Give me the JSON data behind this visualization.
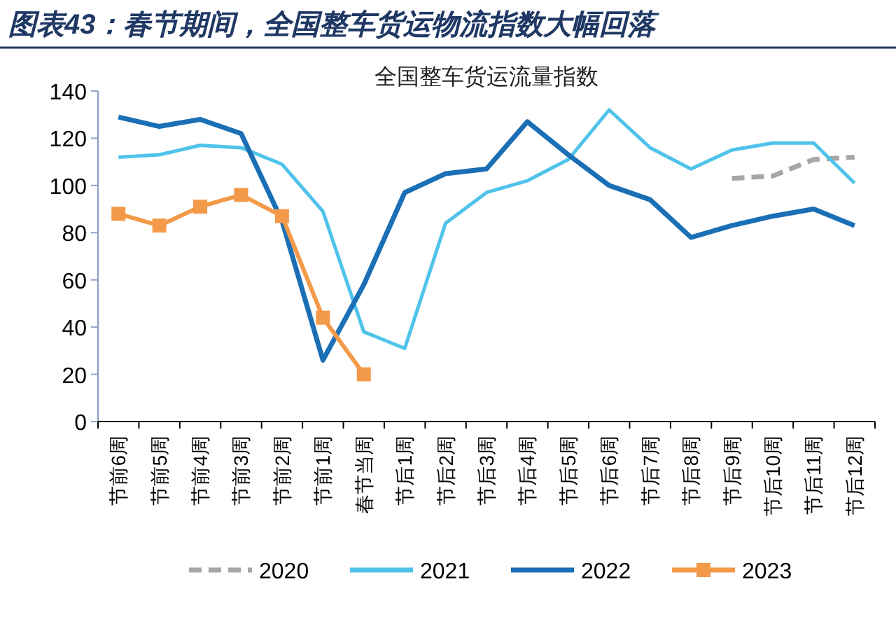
{
  "chart_data": {
    "type": "line",
    "title": "图表43：春节期间，全国整车货运物流指数大幅回落",
    "subtitle": "全国整车货运流量指数",
    "categories": [
      "节前6周",
      "节前5周",
      "节前4周",
      "节前3周",
      "节前2周",
      "节前1周",
      "春节当周",
      "节后1周",
      "节后2周",
      "节后3周",
      "节后4周",
      "节后5周",
      "节后6周",
      "节后7周",
      "节后8周",
      "节后9周",
      "节后10周",
      "节后11周",
      "节后12周"
    ],
    "series": [
      {
        "name": "2020",
        "color": "#a6a6a6",
        "line_style": "dashed",
        "marker": "none",
        "values": [
          null,
          null,
          null,
          null,
          null,
          null,
          null,
          null,
          null,
          null,
          null,
          null,
          null,
          null,
          null,
          103,
          104,
          111,
          112
        ]
      },
      {
        "name": "2021",
        "color": "#4fc3ea",
        "line_style": "solid",
        "marker": "none",
        "values": [
          112,
          113,
          117,
          116,
          109,
          89,
          38,
          31,
          84,
          97,
          102,
          111,
          132,
          116,
          107,
          115,
          118,
          118,
          101
        ]
      },
      {
        "name": "2022",
        "color": "#1a6fb5",
        "line_style": "solid",
        "marker": "none",
        "values": [
          129,
          125,
          128,
          122,
          85,
          26,
          58,
          97,
          105,
          107,
          127,
          113,
          100,
          94,
          78,
          83,
          87,
          90,
          83
        ]
      },
      {
        "name": "2023",
        "color": "#f39a4a",
        "line_style": "solid",
        "marker": "square",
        "values": [
          88,
          83,
          91,
          96,
          87,
          44,
          20,
          null,
          null,
          null,
          null,
          null,
          null,
          null,
          null,
          null,
          null,
          null,
          null
        ]
      }
    ],
    "ylim": [
      0,
      140
    ],
    "yticks": [
      0,
      20,
      40,
      60,
      80,
      100,
      120,
      140
    ],
    "grid": false,
    "legend": "bottom"
  }
}
